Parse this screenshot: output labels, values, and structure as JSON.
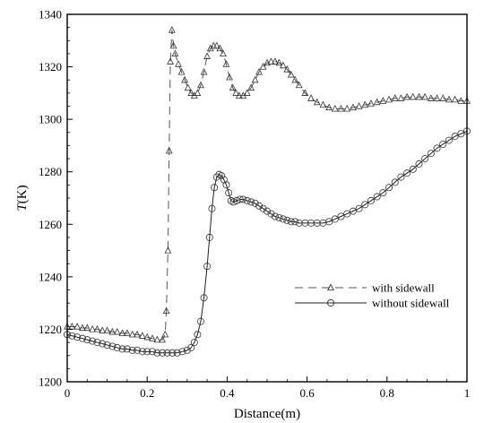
{
  "chart_data": {
    "type": "line",
    "xlabel": "Distance(m)",
    "ylabel_italic": "T",
    "ylabel_unit": "(K)",
    "xlim": [
      0,
      1
    ],
    "ylim": [
      1200,
      1340
    ],
    "xticks": [
      0,
      0.2,
      0.4,
      0.6,
      0.8,
      1
    ],
    "xtick_labels": [
      "0",
      "0.2",
      "0.4",
      "0.6",
      "0.8",
      "1"
    ],
    "yticks": [
      1200,
      1220,
      1240,
      1260,
      1280,
      1300,
      1320,
      1340
    ],
    "ytick_labels": [
      "1200",
      "1220",
      "1240",
      "1260",
      "1280",
      "1300",
      "1320",
      "1340"
    ],
    "grid": false,
    "legend_position": "lower-right",
    "series": [
      {
        "name": "with sidewall",
        "line_style": "dashed",
        "marker": "triangle",
        "x": [
          0.0,
          0.012,
          0.025,
          0.038,
          0.05,
          0.063,
          0.075,
          0.088,
          0.1,
          0.113,
          0.125,
          0.138,
          0.15,
          0.163,
          0.175,
          0.188,
          0.2,
          0.213,
          0.225,
          0.238,
          0.245,
          0.248,
          0.252,
          0.255,
          0.258,
          0.262,
          0.266,
          0.27,
          0.278,
          0.286,
          0.294,
          0.302,
          0.31,
          0.318,
          0.326,
          0.334,
          0.342,
          0.35,
          0.358,
          0.366,
          0.374,
          0.382,
          0.39,
          0.398,
          0.406,
          0.414,
          0.422,
          0.43,
          0.44,
          0.45,
          0.46,
          0.47,
          0.48,
          0.49,
          0.5,
          0.51,
          0.52,
          0.53,
          0.54,
          0.55,
          0.56,
          0.57,
          0.58,
          0.595,
          0.61,
          0.625,
          0.64,
          0.655,
          0.67,
          0.685,
          0.7,
          0.715,
          0.73,
          0.745,
          0.76,
          0.775,
          0.79,
          0.805,
          0.82,
          0.835,
          0.85,
          0.865,
          0.88,
          0.895,
          0.91,
          0.925,
          0.94,
          0.955,
          0.97,
          0.985,
          1.0
        ],
        "y": [
          1221,
          1221,
          1221,
          1220.5,
          1220.5,
          1220,
          1220,
          1219.5,
          1219.5,
          1219,
          1219,
          1218.5,
          1218.5,
          1218,
          1218,
          1217.5,
          1217,
          1216.5,
          1216,
          1216,
          1218,
          1227,
          1250,
          1288,
          1322,
          1334,
          1328,
          1325,
          1321,
          1318,
          1315,
          1312,
          1310,
          1309,
          1310,
          1313,
          1318,
          1324,
          1327,
          1328,
          1328,
          1327,
          1325,
          1321,
          1316,
          1312,
          1310,
          1309,
          1309,
          1310,
          1312,
          1315,
          1318,
          1320,
          1321.5,
          1322,
          1322,
          1321.5,
          1320.5,
          1319,
          1317,
          1315,
          1313,
          1310,
          1308,
          1306.5,
          1305.5,
          1304.5,
          1304,
          1304,
          1304,
          1304.5,
          1305,
          1305.5,
          1306,
          1306.5,
          1307,
          1307.5,
          1308,
          1308,
          1308.5,
          1308.5,
          1308.5,
          1308.5,
          1308,
          1308,
          1308,
          1307.5,
          1307.5,
          1307,
          1307
        ]
      },
      {
        "name": "without sidewall",
        "line_style": "solid",
        "marker": "circle",
        "x": [
          0.0,
          0.012,
          0.025,
          0.038,
          0.05,
          0.063,
          0.075,
          0.088,
          0.1,
          0.113,
          0.125,
          0.138,
          0.15,
          0.163,
          0.175,
          0.188,
          0.2,
          0.213,
          0.225,
          0.238,
          0.25,
          0.263,
          0.275,
          0.288,
          0.3,
          0.31,
          0.318,
          0.326,
          0.334,
          0.342,
          0.35,
          0.356,
          0.362,
          0.368,
          0.374,
          0.38,
          0.386,
          0.392,
          0.398,
          0.404,
          0.41,
          0.416,
          0.424,
          0.432,
          0.44,
          0.45,
          0.46,
          0.47,
          0.48,
          0.49,
          0.5,
          0.51,
          0.52,
          0.53,
          0.54,
          0.55,
          0.56,
          0.57,
          0.58,
          0.595,
          0.61,
          0.625,
          0.64,
          0.655,
          0.67,
          0.685,
          0.7,
          0.715,
          0.73,
          0.745,
          0.76,
          0.775,
          0.79,
          0.805,
          0.82,
          0.835,
          0.85,
          0.865,
          0.88,
          0.895,
          0.91,
          0.925,
          0.94,
          0.955,
          0.97,
          0.985,
          1.0
        ],
        "y": [
          1218,
          1217.5,
          1217,
          1216.5,
          1216,
          1215.5,
          1215,
          1214.5,
          1214,
          1213.5,
          1213,
          1212.5,
          1212.5,
          1212,
          1212,
          1211.5,
          1211.5,
          1211.5,
          1211,
          1211,
          1211,
          1211,
          1211,
          1211.5,
          1212,
          1213,
          1215,
          1218,
          1223,
          1232,
          1244,
          1255,
          1266,
          1274,
          1278,
          1279,
          1278.5,
          1277,
          1275,
          1272,
          1269,
          1268.5,
          1269,
          1269.5,
          1269.5,
          1269,
          1268.5,
          1268,
          1267,
          1266,
          1265,
          1264,
          1263,
          1262.5,
          1262,
          1261.5,
          1261,
          1261,
          1260.5,
          1260.5,
          1260.5,
          1260.5,
          1260.5,
          1261,
          1262,
          1263,
          1264,
          1265,
          1266,
          1267.5,
          1269,
          1270.5,
          1272,
          1274,
          1276,
          1278,
          1279.5,
          1281,
          1283,
          1285,
          1287,
          1289,
          1290.5,
          1292,
          1293.5,
          1294.5,
          1295.5
        ]
      }
    ]
  }
}
